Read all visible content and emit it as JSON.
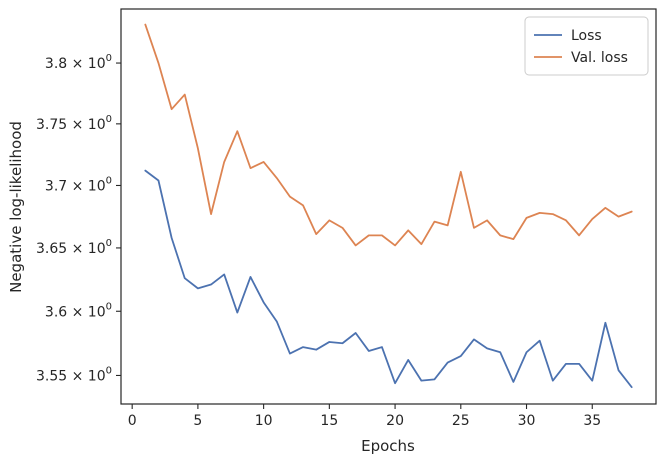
{
  "chart_data": {
    "type": "line",
    "title": "",
    "xlabel": "Epochs",
    "ylabel": "Negative log-likelihood",
    "x_ticks": [
      0,
      5,
      10,
      15,
      20,
      25,
      30,
      35
    ],
    "x_tick_labels": [
      "0",
      "5",
      "10",
      "15",
      "20",
      "25",
      "30",
      "35"
    ],
    "xlim": [
      -0.85,
      39.85
    ],
    "y_scale": "log",
    "ylim": [
      3.528,
      3.845
    ],
    "y_ticks": [
      3.55,
      3.6,
      3.65,
      3.7,
      3.75,
      3.8
    ],
    "y_tick_labels": [
      {
        "mantissa": "3.55",
        "times": "×",
        "base": "10",
        "exponent": "0"
      },
      {
        "mantissa": "3.6",
        "times": "×",
        "base": "10",
        "exponent": "0"
      },
      {
        "mantissa": "3.65",
        "times": "×",
        "base": "10",
        "exponent": "0"
      },
      {
        "mantissa": "3.7",
        "times": "×",
        "base": "10",
        "exponent": "0"
      },
      {
        "mantissa": "3.75",
        "times": "×",
        "base": "10",
        "exponent": "0"
      },
      {
        "mantissa": "3.8",
        "times": "×",
        "base": "10",
        "exponent": "0"
      }
    ],
    "grid": false,
    "legend_position": "top-right",
    "x": [
      1,
      2,
      3,
      4,
      5,
      6,
      7,
      8,
      9,
      10,
      11,
      12,
      13,
      14,
      15,
      16,
      17,
      18,
      19,
      20,
      21,
      22,
      23,
      24,
      25,
      26,
      27,
      28,
      29,
      30,
      31,
      32,
      33,
      34,
      35,
      36,
      37,
      38
    ],
    "series": [
      {
        "name": "Loss",
        "color": "#4c72b0",
        "values": [
          3.712,
          3.704,
          3.658,
          3.626,
          3.618,
          3.621,
          3.629,
          3.599,
          3.627,
          3.607,
          3.592,
          3.567,
          3.572,
          3.57,
          3.576,
          3.575,
          3.583,
          3.569,
          3.572,
          3.544,
          3.562,
          3.546,
          3.547,
          3.56,
          3.565,
          3.578,
          3.571,
          3.568,
          3.545,
          3.568,
          3.577,
          3.546,
          3.559,
          3.559,
          3.546,
          3.591,
          3.554,
          3.541
        ]
      },
      {
        "name": "Val. loss",
        "color": "#dd8452",
        "values": [
          3.832,
          3.8,
          3.762,
          3.774,
          3.73,
          3.677,
          3.719,
          3.744,
          3.714,
          3.719,
          3.706,
          3.691,
          3.684,
          3.661,
          3.672,
          3.666,
          3.652,
          3.66,
          3.66,
          3.652,
          3.664,
          3.653,
          3.671,
          3.668,
          3.711,
          3.666,
          3.672,
          3.66,
          3.657,
          3.674,
          3.678,
          3.677,
          3.672,
          3.66,
          3.673,
          3.682,
          3.675,
          3.679
        ]
      }
    ]
  }
}
